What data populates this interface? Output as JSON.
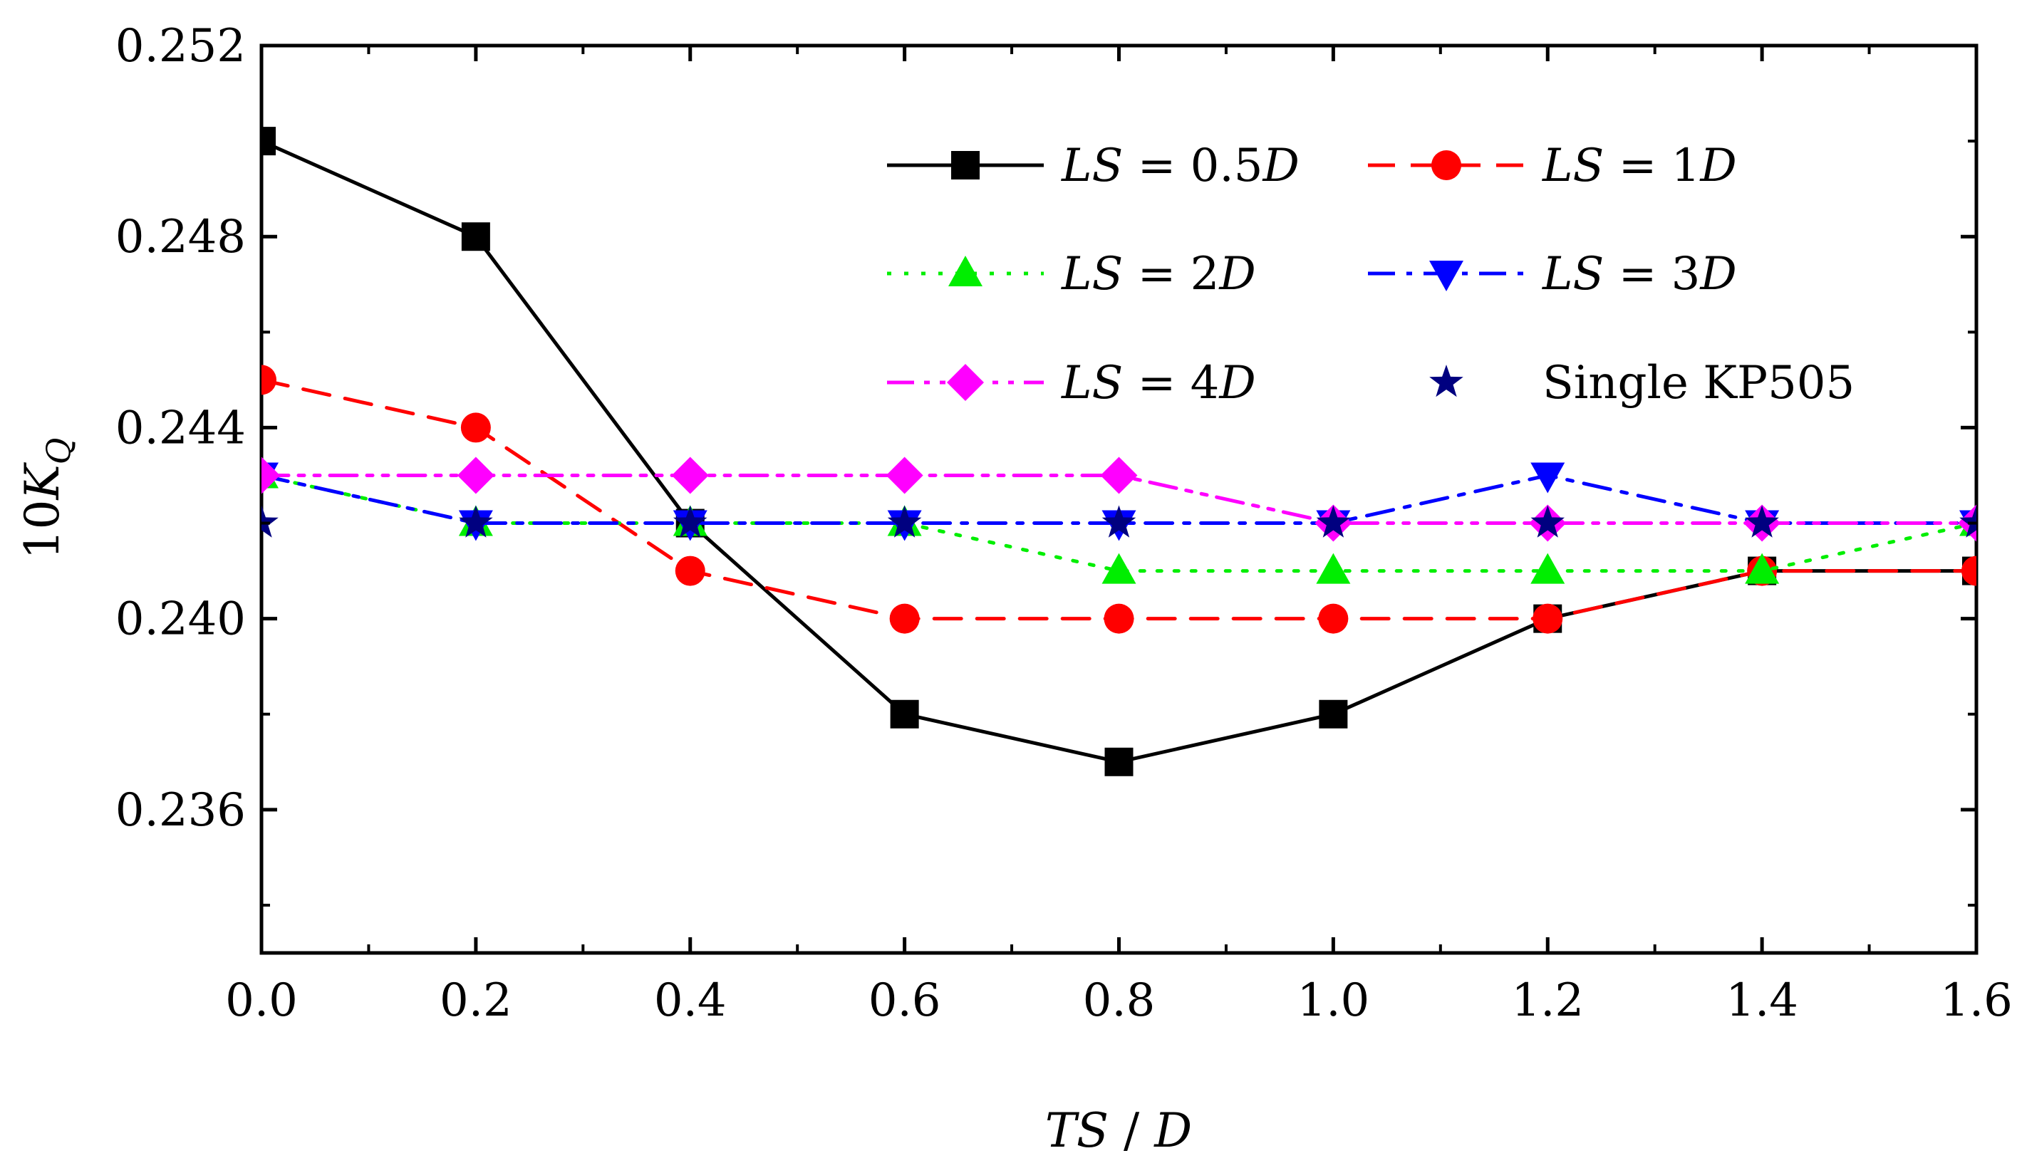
{
  "chart_data": {
    "type": "line",
    "title": "",
    "xlabel": "TS / D",
    "ylabel": "10K_Q",
    "xlim": [
      0.0,
      1.6
    ],
    "ylim": [
      0.233,
      0.252
    ],
    "x_ticks": [
      0.0,
      0.2,
      0.4,
      0.6,
      0.8,
      1.0,
      1.2,
      1.4,
      1.6
    ],
    "x_tick_labels": [
      "0.0",
      "0.2",
      "0.4",
      "0.6",
      "0.8",
      "1.0",
      "1.2",
      "1.4",
      "1.6"
    ],
    "y_ticks": [
      0.236,
      0.24,
      0.244,
      0.248,
      0.252
    ],
    "y_tick_labels": [
      "0.236",
      "0.240",
      "0.244",
      "0.248",
      "0.252"
    ],
    "grid": false,
    "legend_position": "top-right",
    "x": [
      0.0,
      0.2,
      0.4,
      0.6,
      0.8,
      1.0,
      1.2,
      1.4,
      1.6
    ],
    "series": [
      {
        "name": "LS = 0.5D",
        "label_parts": [
          "LS",
          " = 0.5",
          "D"
        ],
        "color": "#000000",
        "line": "solid",
        "marker": "square",
        "values": [
          0.25,
          0.248,
          0.242,
          0.238,
          0.237,
          0.238,
          0.24,
          0.241,
          0.241
        ]
      },
      {
        "name": "LS = 1D",
        "label_parts": [
          "LS",
          " = 1",
          "D"
        ],
        "color": "#ff0000",
        "line": "dash",
        "marker": "circle",
        "values": [
          0.245,
          0.244,
          0.241,
          0.24,
          0.24,
          0.24,
          0.24,
          0.241,
          0.241
        ]
      },
      {
        "name": "LS = 2D",
        "label_parts": [
          "LS",
          " = 2",
          "D"
        ],
        "color": "#00ee00",
        "line": "dot",
        "marker": "triangle-up",
        "values": [
          0.243,
          0.242,
          0.242,
          0.242,
          0.241,
          0.241,
          0.241,
          0.241,
          0.242
        ]
      },
      {
        "name": "LS = 3D",
        "label_parts": [
          "LS",
          " = 3",
          "D"
        ],
        "color": "#0000ff",
        "line": "dashdot",
        "marker": "triangle-down",
        "values": [
          0.243,
          0.242,
          0.242,
          0.242,
          0.242,
          0.242,
          0.243,
          0.242,
          0.242
        ]
      },
      {
        "name": "LS = 4D",
        "label_parts": [
          "LS",
          " = 4",
          "D"
        ],
        "color": "#ff00ff",
        "line": "dashdotdot",
        "marker": "diamond",
        "values": [
          0.243,
          0.243,
          0.243,
          0.243,
          0.243,
          0.242,
          0.242,
          0.242,
          0.242
        ]
      },
      {
        "name": "Single KP505",
        "label_parts": [
          "Single KP505"
        ],
        "color": "#000080",
        "line": "none",
        "marker": "star",
        "values": [
          0.242,
          0.242,
          0.242,
          0.242,
          0.242,
          0.242,
          0.242,
          0.242,
          0.242
        ]
      }
    ]
  }
}
